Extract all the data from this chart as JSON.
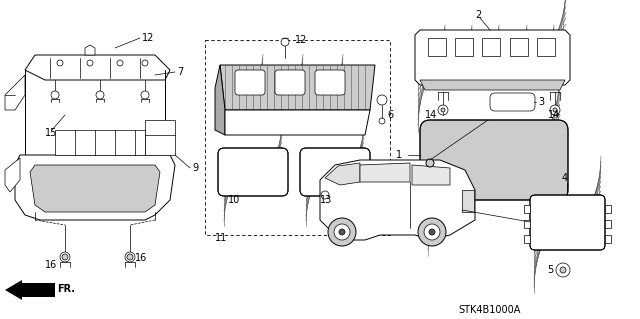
{
  "bg_color": "#ffffff",
  "footnote": "STK4B1000A",
  "fig_width": 6.4,
  "fig_height": 3.19,
  "dpi": 100
}
